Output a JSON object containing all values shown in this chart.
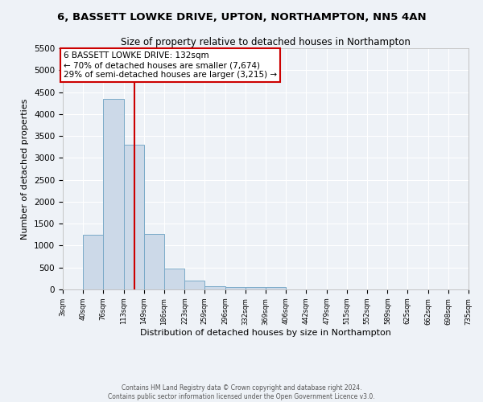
{
  "title": "6, BASSETT LOWKE DRIVE, UPTON, NORTHAMPTON, NN5 4AN",
  "subtitle": "Size of property relative to detached houses in Northampton",
  "xlabel": "Distribution of detached houses by size in Northampton",
  "ylabel": "Number of detached properties",
  "bar_color": "#ccd9e8",
  "bar_edge_color": "#7aaac8",
  "background_color": "#eef2f7",
  "grid_color": "#ffffff",
  "annotation_text": "6 BASSETT LOWKE DRIVE: 132sqm\n← 70% of detached houses are smaller (7,674)\n29% of semi-detached houses are larger (3,215) →",
  "property_size": 132,
  "red_line_color": "#cc0000",
  "bin_edges": [
    3,
    40,
    76,
    113,
    149,
    186,
    223,
    259,
    296,
    332,
    369,
    406,
    442,
    479,
    515,
    552,
    589,
    625,
    662,
    698,
    735
  ],
  "bar_heights": [
    0,
    1250,
    4350,
    3300,
    1270,
    480,
    200,
    80,
    55,
    55,
    55,
    0,
    0,
    0,
    0,
    0,
    0,
    0,
    0,
    0
  ],
  "ylim": [
    0,
    5500
  ],
  "yticks": [
    0,
    500,
    1000,
    1500,
    2000,
    2500,
    3000,
    3500,
    4000,
    4500,
    5000,
    5500
  ],
  "annotation_box_color": "#ffffff",
  "annotation_border_color": "#cc0000",
  "footer_line1": "Contains HM Land Registry data © Crown copyright and database right 2024.",
  "footer_line2": "Contains public sector information licensed under the Open Government Licence v3.0."
}
